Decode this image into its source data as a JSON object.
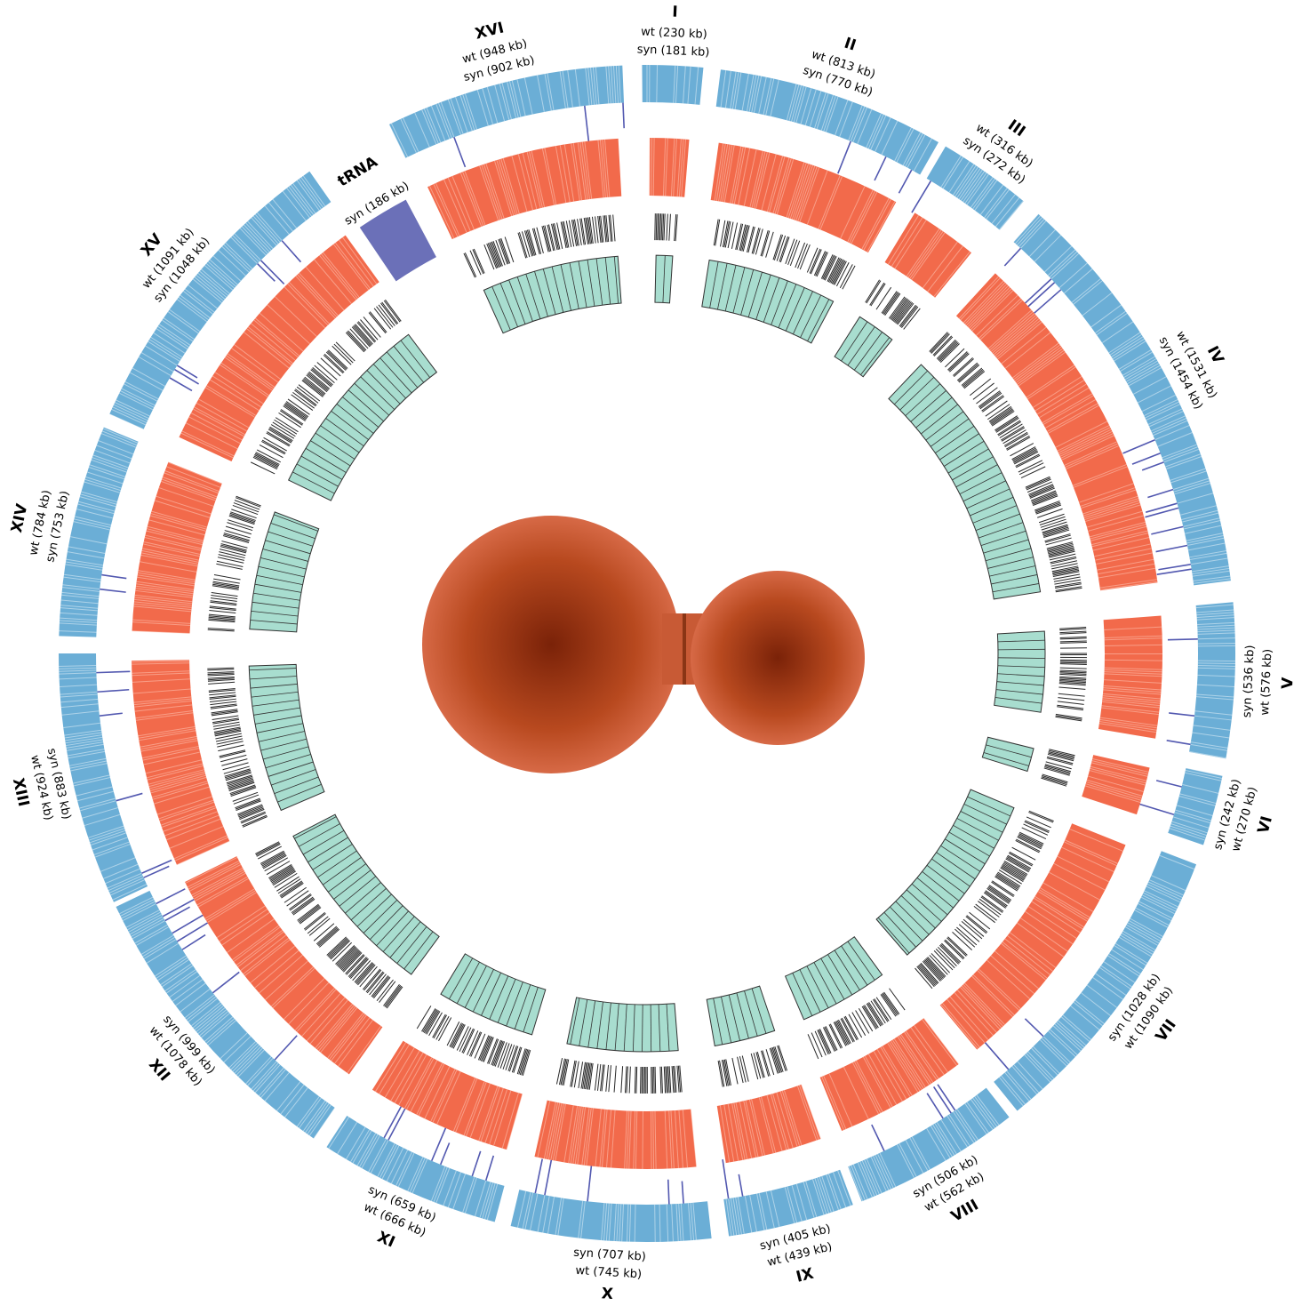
{
  "chromosomes": [
    {
      "name": "I",
      "wt": "wt  (230 kb)",
      "syn": "syn (181 kb)"
    },
    {
      "name": "II",
      "wt": "wt  (813 kb)",
      "syn": "syn (770 kb)"
    },
    {
      "name": "III",
      "wt": "wt  (316 kb)",
      "syn": "syn (272 kb)"
    },
    {
      "name": "IV",
      "wt": "wt  (1531 kb)",
      "syn": "syn (1454 kb)"
    },
    {
      "name": "V",
      "wt": "wt  (576 kb)",
      "syn": "syn (536 kb)"
    },
    {
      "name": "VI",
      "wt": "wt  (270 kb)",
      "syn": "syn (242 kb)"
    },
    {
      "name": "VII",
      "wt": "wt  (1090 kb)",
      "syn": "syn (1028 kb)"
    },
    {
      "name": "VIII",
      "wt": "wt  (562 kb)",
      "syn": "syn (506 kb)"
    },
    {
      "name": "IX",
      "wt": "wt  (439 kb)",
      "syn": "syn (405 kb)"
    },
    {
      "name": "X",
      "wt": "wt  (745 kb)",
      "syn": "syn (707 kb)"
    },
    {
      "name": "XI",
      "wt": "wt  (666 kb)",
      "syn": "syn (659 kb)"
    },
    {
      "name": "XII",
      "wt": "wt  (1078 kb)",
      "syn": "syn (999 kb)"
    },
    {
      "name": "XIII",
      "wt": "wt  (924 kb)",
      "syn": "syn (883 kb)"
    },
    {
      "name": "XIV",
      "wt": "wt  (784 kb)",
      "syn": "syn (753 kb)"
    },
    {
      "name": "XV",
      "wt": "wt  (1091 kb)",
      "syn": "syn (1048 kb)"
    },
    {
      "name": "tRNA",
      "syn": "syn (186 kb)"
    },
    {
      "name": "XVI",
      "wt": "wt  (948 kb)",
      "syn": "syn (902 kb)"
    }
  ]
}
